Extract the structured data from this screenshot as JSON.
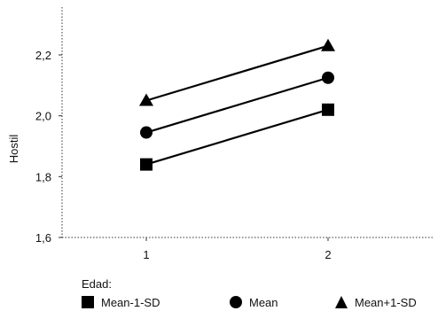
{
  "chart_data": {
    "type": "line",
    "x": [
      1,
      2
    ],
    "xticks": [
      "1",
      "2"
    ],
    "ylabel": "Hostil",
    "ylim": [
      1.6,
      2.3
    ],
    "yticks": [
      "1,6",
      "1,8",
      "2,0",
      "2,2"
    ],
    "ytick_values": [
      1.6,
      1.8,
      2.0,
      2.2
    ],
    "grid": false,
    "legend_title": "Edad:",
    "legend_position": "bottom",
    "series": [
      {
        "name": "Mean-1-SD",
        "marker": "square",
        "values": [
          1.84,
          2.02
        ]
      },
      {
        "name": "Mean",
        "marker": "circle",
        "values": [
          1.945,
          2.125
        ]
      },
      {
        "name": "Mean+1-SD",
        "marker": "triangle",
        "values": [
          2.05,
          2.23
        ]
      }
    ]
  }
}
